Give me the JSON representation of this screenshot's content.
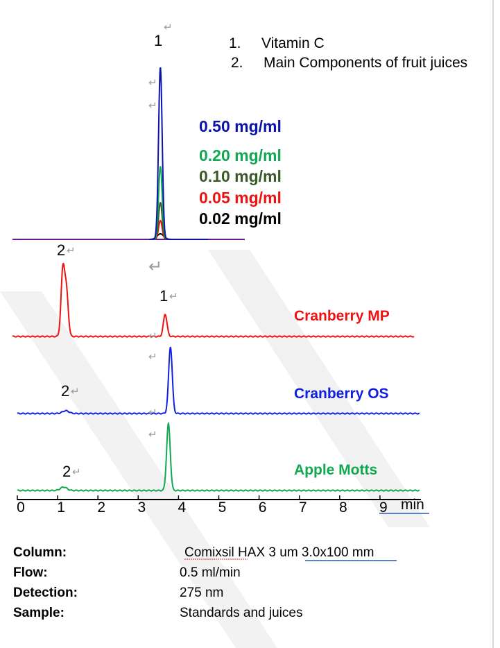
{
  "legend": {
    "items": [
      {
        "num": "1.",
        "text": "Vitamin C"
      },
      {
        "num": "2.",
        "text": "Main Components of fruit juices"
      }
    ]
  },
  "peak_labels": {
    "one": "1",
    "two": "2"
  },
  "standards": [
    {
      "label": "0.50 mg/ml",
      "color": "#0a14a8"
    },
    {
      "label": "0.20 mg/ml",
      "color": "#10a850"
    },
    {
      "label": "0.10 mg/ml",
      "color": "#3a5a28"
    },
    {
      "label": "0.05 mg/ml",
      "color": "#ee1111"
    },
    {
      "label": "0.02 mg/ml",
      "color": "#000000"
    }
  ],
  "samples": [
    {
      "label": "Cranberry MP",
      "color": "#ee1111"
    },
    {
      "label": "Cranberry OS",
      "color": "#1020e0"
    },
    {
      "label": "Apple Motts",
      "color": "#10a850"
    }
  ],
  "axis": {
    "ticks": [
      "0",
      "1",
      "2",
      "3",
      "4",
      "5",
      "6",
      "7",
      "8",
      "9"
    ],
    "unit": "min"
  },
  "conditions": [
    {
      "label": "Column:",
      "value": "Comixsil HAX 3 um  3.0x100 mm"
    },
    {
      "label": "Flow:",
      "value": "0.5 ml/min"
    },
    {
      "label": "Detection:",
      "value": "275 nm"
    },
    {
      "label": "Sample:",
      "value": "Standards and juices"
    }
  ],
  "chart_data": {
    "type": "line",
    "xlabel": "min",
    "xlim": [
      0,
      10
    ],
    "x_ticks": [
      0,
      1,
      2,
      3,
      4,
      5,
      6,
      7,
      8,
      9
    ],
    "grid": false,
    "y_axis_shown": false,
    "traces": [
      {
        "name": "0.50 mg/ml",
        "color": "#0a14a8",
        "group": "standards",
        "peaks": [
          {
            "t": 3.55,
            "height": 248,
            "id": "1"
          }
        ]
      },
      {
        "name": "0.20 mg/ml",
        "color": "#10a850",
        "group": "standards",
        "peaks": [
          {
            "t": 3.55,
            "height": 105,
            "id": "1"
          }
        ]
      },
      {
        "name": "0.10 mg/ml",
        "color": "#3a5a28",
        "group": "standards",
        "peaks": [
          {
            "t": 3.55,
            "height": 53,
            "id": "1"
          }
        ]
      },
      {
        "name": "0.05 mg/ml",
        "color": "#ee1111",
        "group": "standards",
        "peaks": [
          {
            "t": 3.55,
            "height": 27,
            "id": "1"
          }
        ]
      },
      {
        "name": "0.02 mg/ml",
        "color": "#000000",
        "group": "standards",
        "peaks": [
          {
            "t": 3.55,
            "height": 8,
            "id": "1"
          }
        ]
      },
      {
        "name": "Cranberry MP",
        "color": "#ee1111",
        "group": "sample",
        "peaks": [
          {
            "t": 1.13,
            "height": 95,
            "id": "2"
          },
          {
            "t": 1.22,
            "height": 62,
            "id": "2"
          },
          {
            "t": 3.67,
            "height": 32,
            "id": "1"
          }
        ]
      },
      {
        "name": "Cranberry OS",
        "color": "#1020e0",
        "group": "sample",
        "peaks": [
          {
            "t": 1.2,
            "height": 4,
            "id": "2"
          },
          {
            "t": 3.8,
            "height": 96,
            "id": "1"
          }
        ]
      },
      {
        "name": "Apple Motts",
        "color": "#10a850",
        "group": "sample",
        "peaks": [
          {
            "t": 1.15,
            "height": 5,
            "id": "2"
          },
          {
            "t": 3.75,
            "height": 96,
            "id": "1"
          }
        ]
      }
    ]
  }
}
